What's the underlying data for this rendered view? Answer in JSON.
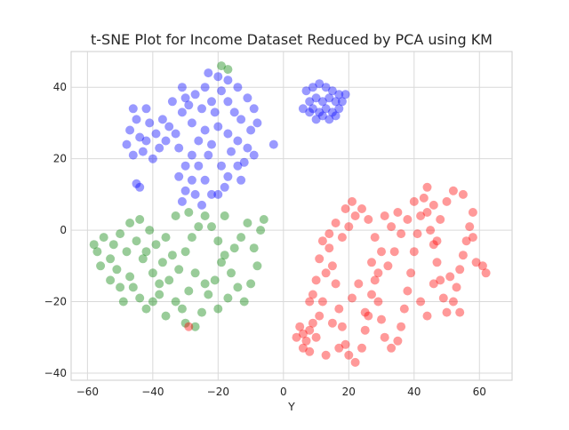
{
  "chart_data": {
    "type": "scatter",
    "title": "t-SNE Plot for Income Dataset Reduced by PCA using KM",
    "xlabel": "Y",
    "ylabel": "",
    "xlim": [
      -65,
      70
    ],
    "ylim": [
      -42,
      50
    ],
    "x_ticks": [
      "−60",
      "−40",
      "−20",
      "0",
      "20",
      "40",
      "60"
    ],
    "y_ticks": [
      "−40",
      "−20",
      "0",
      "20",
      "40"
    ],
    "grid": true,
    "legend": "none",
    "series": [
      {
        "color": "#0000ff",
        "points": [
          [
            -46,
            34
          ],
          [
            -45,
            31
          ],
          [
            -47,
            28
          ],
          [
            -44,
            26
          ],
          [
            -48,
            24
          ],
          [
            -43,
            22
          ],
          [
            -41,
            30
          ],
          [
            -39,
            27
          ],
          [
            -42,
            25
          ],
          [
            -38,
            23
          ],
          [
            -46,
            21
          ],
          [
            -40,
            20
          ],
          [
            -37,
            31
          ],
          [
            -35,
            29
          ],
          [
            -33,
            27
          ],
          [
            -36,
            25
          ],
          [
            -45,
            13
          ],
          [
            -44,
            12
          ],
          [
            -31,
            40
          ],
          [
            -30,
            37
          ],
          [
            -27,
            38
          ],
          [
            -29,
            35
          ],
          [
            -25,
            34
          ],
          [
            -31,
            33
          ],
          [
            -23,
            44
          ],
          [
            -20,
            43
          ],
          [
            -17,
            42
          ],
          [
            -24,
            40
          ],
          [
            -19,
            39
          ],
          [
            -14,
            40
          ],
          [
            -22,
            36
          ],
          [
            -17,
            36
          ],
          [
            -11,
            37
          ],
          [
            -21,
            33
          ],
          [
            -15,
            33
          ],
          [
            -9,
            34
          ],
          [
            -13,
            31
          ],
          [
            -8,
            30
          ],
          [
            -10,
            28
          ],
          [
            -28,
            30
          ],
          [
            -24,
            28
          ],
          [
            -20,
            29
          ],
          [
            -26,
            25
          ],
          [
            -22,
            24
          ],
          [
            -17,
            27
          ],
          [
            -32,
            23
          ],
          [
            -28,
            21
          ],
          [
            -23,
            21
          ],
          [
            -14,
            25
          ],
          [
            -11,
            23
          ],
          [
            -9,
            21
          ],
          [
            -16,
            22
          ],
          [
            -12,
            19
          ],
          [
            -19,
            18
          ],
          [
            -30,
            18
          ],
          [
            -26,
            18
          ],
          [
            -32,
            15
          ],
          [
            -28,
            14
          ],
          [
            -24,
            14
          ],
          [
            -30,
            11
          ],
          [
            -27,
            10
          ],
          [
            -31,
            8
          ],
          [
            -22,
            10
          ],
          [
            -20,
            10
          ],
          [
            -25,
            7
          ],
          [
            -14,
            18
          ],
          [
            -17,
            15
          ],
          [
            -13,
            14
          ],
          [
            -18,
            12
          ],
          [
            -3,
            24
          ],
          [
            -42,
            34
          ],
          [
            -34,
            36
          ],
          [
            7,
            39
          ],
          [
            9,
            40
          ],
          [
            11,
            41
          ],
          [
            13,
            40
          ],
          [
            15,
            39
          ],
          [
            17,
            38
          ],
          [
            19,
            38
          ],
          [
            8,
            36
          ],
          [
            10,
            37
          ],
          [
            12,
            36
          ],
          [
            14,
            37
          ],
          [
            16,
            36
          ],
          [
            6,
            34
          ],
          [
            9,
            34
          ],
          [
            11,
            33
          ],
          [
            13,
            34
          ],
          [
            15,
            33
          ],
          [
            17,
            34
          ],
          [
            10,
            31
          ],
          [
            12,
            32
          ],
          [
            14,
            31
          ],
          [
            8,
            33
          ],
          [
            18,
            36
          ],
          [
            16,
            32
          ]
        ]
      },
      {
        "color": "#008000",
        "points": [
          [
            -58,
            -4
          ],
          [
            -57,
            -6
          ],
          [
            -55,
            -2
          ],
          [
            -53,
            -8
          ],
          [
            -56,
            -10
          ],
          [
            -52,
            -4
          ],
          [
            -50,
            -1
          ],
          [
            -48,
            -6
          ],
          [
            -51,
            -11
          ],
          [
            -47,
            -13
          ],
          [
            -45,
            -3
          ],
          [
            -43,
            -8
          ],
          [
            -46,
            -16
          ],
          [
            -44,
            -19
          ],
          [
            -42,
            -22
          ],
          [
            -40,
            -12
          ],
          [
            -38,
            -18
          ],
          [
            -36,
            -24
          ],
          [
            -47,
            2
          ],
          [
            -44,
            3
          ],
          [
            -41,
            0
          ],
          [
            -39,
            -4
          ],
          [
            -37,
            -9
          ],
          [
            -35,
            -14
          ],
          [
            -33,
            -20
          ],
          [
            -31,
            -22
          ],
          [
            -29,
            -17
          ],
          [
            -27,
            -12
          ],
          [
            -30,
            -6
          ],
          [
            -28,
            -2
          ],
          [
            -26,
            1
          ],
          [
            -24,
            4
          ],
          [
            -22,
            1
          ],
          [
            -20,
            -3
          ],
          [
            -18,
            -7
          ],
          [
            -16,
            -12
          ],
          [
            -14,
            -16
          ],
          [
            -12,
            -20
          ],
          [
            -10,
            -15
          ],
          [
            -8,
            -10
          ],
          [
            -9,
            -5
          ],
          [
            -7,
            0
          ],
          [
            -6,
            3
          ],
          [
            -11,
            2
          ],
          [
            -13,
            -2
          ],
          [
            -15,
            -5
          ],
          [
            -19,
            -9
          ],
          [
            -21,
            -14
          ],
          [
            -23,
            -18
          ],
          [
            -25,
            -23
          ],
          [
            -34,
            -7
          ],
          [
            -32,
            -11
          ],
          [
            -36,
            -2
          ],
          [
            -27,
            -27
          ],
          [
            -30,
            -26
          ],
          [
            -24,
            -15
          ],
          [
            -17,
            -19
          ],
          [
            -20,
            -22
          ],
          [
            -33,
            4
          ],
          [
            -29,
            5
          ],
          [
            -18,
            4
          ],
          [
            -53,
            -14
          ],
          [
            -50,
            -16
          ],
          [
            -49,
            -20
          ],
          [
            -38,
            -15
          ],
          [
            -42,
            -6
          ],
          [
            -40,
            -20
          ],
          [
            -19,
            46
          ],
          [
            -17,
            45
          ]
        ]
      },
      {
        "color": "#ff0000",
        "points": [
          [
            5,
            -27
          ],
          [
            6,
            -29
          ],
          [
            8,
            -28
          ],
          [
            4,
            -30
          ],
          [
            7,
            -31
          ],
          [
            9,
            -26
          ],
          [
            10,
            -30
          ],
          [
            6,
            -33
          ],
          [
            8,
            -34
          ],
          [
            11,
            -24
          ],
          [
            12,
            -20
          ],
          [
            10,
            -14
          ],
          [
            9,
            -18
          ],
          [
            13,
            -12
          ],
          [
            11,
            -8
          ],
          [
            12,
            -3
          ],
          [
            14,
            -5
          ],
          [
            15,
            -10
          ],
          [
            16,
            -15
          ],
          [
            17,
            -22
          ],
          [
            18,
            -27
          ],
          [
            19,
            -32
          ],
          [
            20,
            -35
          ],
          [
            22,
            -37
          ],
          [
            24,
            -33
          ],
          [
            25,
            -28
          ],
          [
            26,
            -24
          ],
          [
            27,
            -18
          ],
          [
            28,
            -14
          ],
          [
            29,
            -20
          ],
          [
            30,
            -25
          ],
          [
            31,
            -30
          ],
          [
            33,
            -33
          ],
          [
            35,
            -31
          ],
          [
            36,
            -27
          ],
          [
            37,
            -22
          ],
          [
            38,
            -17
          ],
          [
            39,
            -12
          ],
          [
            40,
            -6
          ],
          [
            41,
            -1
          ],
          [
            42,
            4
          ],
          [
            43,
            9
          ],
          [
            44,
            5
          ],
          [
            45,
            0
          ],
          [
            46,
            -4
          ],
          [
            47,
            -9
          ],
          [
            48,
            -14
          ],
          [
            49,
            -19
          ],
          [
            50,
            -23
          ],
          [
            52,
            -20
          ],
          [
            53,
            -16
          ],
          [
            54,
            -11
          ],
          [
            55,
            -7
          ],
          [
            56,
            -3
          ],
          [
            57,
            1
          ],
          [
            58,
            5
          ],
          [
            59,
            -9
          ],
          [
            61,
            -10
          ],
          [
            62,
            -12
          ],
          [
            55,
            10
          ],
          [
            52,
            11
          ],
          [
            50,
            8
          ],
          [
            48,
            3
          ],
          [
            46,
            7
          ],
          [
            44,
            12
          ],
          [
            40,
            8
          ],
          [
            38,
            3
          ],
          [
            36,
            -1
          ],
          [
            34,
            -6
          ],
          [
            32,
            -10
          ],
          [
            30,
            -6
          ],
          [
            28,
            -2
          ],
          [
            26,
            3
          ],
          [
            24,
            6
          ],
          [
            22,
            4
          ],
          [
            20,
            1
          ],
          [
            18,
            -2
          ],
          [
            19,
            6
          ],
          [
            21,
            8
          ],
          [
            16,
            2
          ],
          [
            14,
            -1
          ],
          [
            33,
            1
          ],
          [
            35,
            5
          ],
          [
            31,
            4
          ],
          [
            29,
            -12
          ],
          [
            27,
            -9
          ],
          [
            23,
            -15
          ],
          [
            21,
            -19
          ],
          [
            25,
            -23
          ],
          [
            15,
            -26
          ],
          [
            17,
            -33
          ],
          [
            13,
            -35
          ],
          [
            8,
            -20
          ],
          [
            42,
            -20
          ],
          [
            44,
            -24
          ],
          [
            46,
            -15
          ],
          [
            51,
            -13
          ],
          [
            54,
            -23
          ],
          [
            47,
            -3
          ],
          [
            58,
            -2
          ],
          [
            -29,
            -27
          ]
        ]
      }
    ]
  }
}
